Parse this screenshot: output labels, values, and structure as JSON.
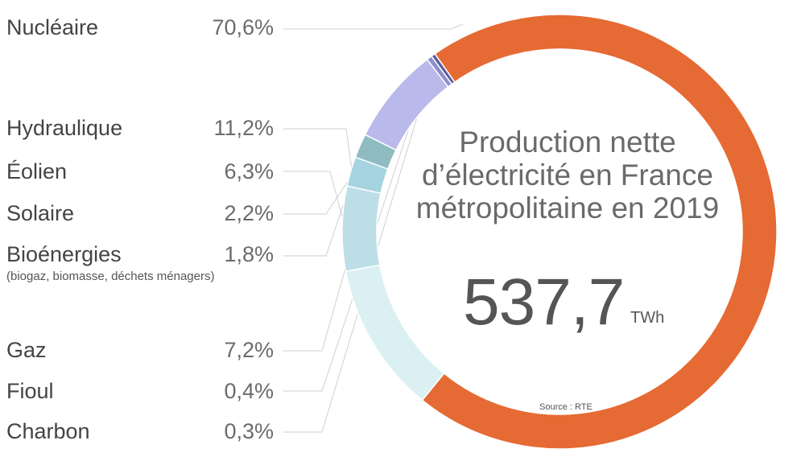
{
  "chart_data": {
    "type": "donut",
    "title": "Production nette d’électricité en France métropolitaine en 2019",
    "total_value": "537,7",
    "total_unit": "TWh",
    "source": "Source : RTE",
    "categories": [
      "Nucléaire",
      "Hydraulique",
      "Éolien",
      "Solaire",
      "Bioénergies",
      "Gaz",
      "Fioul",
      "Charbon"
    ],
    "values": [
      70.6,
      11.2,
      6.3,
      2.2,
      1.8,
      7.2,
      0.4,
      0.3
    ],
    "value_labels": [
      "70,6%",
      "11,2%",
      "6,3%",
      "2,2%",
      "1,8%",
      "7,2%",
      "0,4%",
      "0,3%"
    ],
    "sublabels": [
      "",
      "",
      "",
      "",
      "(biogaz, biomasse, déchets ménagers)",
      "",
      "",
      ""
    ],
    "colors": [
      "#e56a33",
      "#dbf0f3",
      "#bcdfe7",
      "#a5d4e0",
      "#8fbcc0",
      "#b9b9eb",
      "#8f8fd0",
      "#5e5e9f"
    ]
  }
}
